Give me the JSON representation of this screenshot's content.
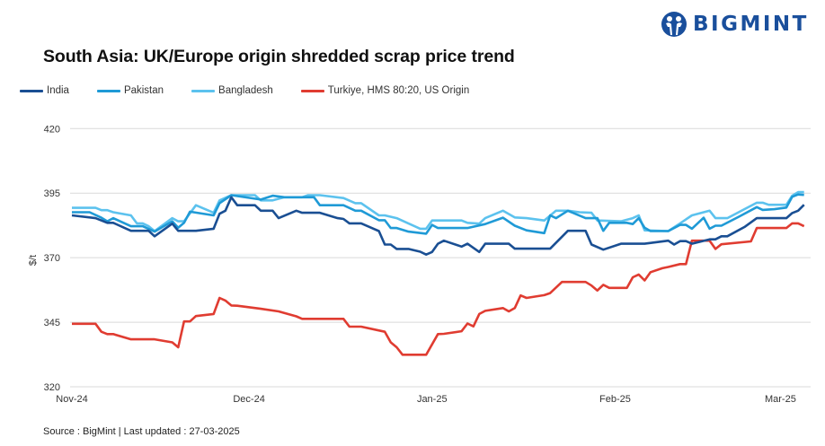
{
  "brand": {
    "name": "BIGMINT",
    "color": "#1a4f9c"
  },
  "source": "Source : BigMint | Last updated : 27-03-2025",
  "chart_data": {
    "type": "line",
    "title": "South Asia: UK/Europe origin shredded scrap price trend",
    "xlabel": "",
    "ylabel": "$/t",
    "ylim": [
      320,
      420
    ],
    "yticks": [
      "320",
      "345",
      "370",
      "395",
      "420"
    ],
    "xlim": [
      "2024-11-01",
      "2025-03-05"
    ],
    "xticks": [
      {
        "date": "2024-11-01",
        "label": "Nov-24"
      },
      {
        "date": "2024-12-01",
        "label": "Dec-24"
      },
      {
        "date": "2025-01-01",
        "label": "Jan-25"
      },
      {
        "date": "2025-02-01",
        "label": "Feb-25"
      },
      {
        "date": "2025-03-01",
        "label": "Mar-25"
      }
    ],
    "grid": "horizontal",
    "legend": "top",
    "series": [
      {
        "name": "India",
        "color": "#1a4f93",
        "points": [
          [
            "2024-11-01",
            386.4
          ],
          [
            "2024-11-05",
            385.3
          ],
          [
            "2024-11-07",
            383.5
          ],
          [
            "2024-11-08",
            383.5
          ],
          [
            "2024-11-11",
            380.4
          ],
          [
            "2024-11-14",
            380.4
          ],
          [
            "2024-11-15",
            378.3
          ],
          [
            "2024-11-18",
            383.2
          ],
          [
            "2024-11-19",
            380.4
          ],
          [
            "2024-11-22",
            380.4
          ],
          [
            "2024-11-25",
            381.2
          ],
          [
            "2024-11-26",
            387.0
          ],
          [
            "2024-11-27",
            388.2
          ],
          [
            "2024-11-28",
            393.4
          ],
          [
            "2024-11-29",
            390.3
          ],
          [
            "2024-12-02",
            390.3
          ],
          [
            "2024-12-03",
            388.2
          ],
          [
            "2024-12-05",
            388.2
          ],
          [
            "2024-12-06",
            385.3
          ],
          [
            "2024-12-09",
            388.2
          ],
          [
            "2024-12-10",
            387.4
          ],
          [
            "2024-12-13",
            387.4
          ],
          [
            "2024-12-16",
            385.3
          ],
          [
            "2024-12-17",
            385.0
          ],
          [
            "2024-12-18",
            383.3
          ],
          [
            "2024-12-20",
            383.3
          ],
          [
            "2024-12-23",
            380.3
          ],
          [
            "2024-12-24",
            375.1
          ],
          [
            "2024-12-25",
            375.1
          ],
          [
            "2024-12-26",
            373.4
          ],
          [
            "2024-12-28",
            373.4
          ],
          [
            "2024-12-30",
            372.3
          ],
          [
            "2024-12-31",
            371.2
          ],
          [
            "2025-01-01",
            372.2
          ],
          [
            "2025-01-02",
            375.4
          ],
          [
            "2025-01-03",
            376.6
          ],
          [
            "2025-01-06",
            374.3
          ],
          [
            "2025-01-07",
            375.4
          ],
          [
            "2025-01-09",
            372.2
          ],
          [
            "2025-01-10",
            375.4
          ],
          [
            "2025-01-14",
            375.4
          ],
          [
            "2025-01-15",
            373.5
          ],
          [
            "2025-01-21",
            373.5
          ],
          [
            "2025-01-24",
            380.4
          ],
          [
            "2025-01-27",
            380.4
          ],
          [
            "2025-01-28",
            375.1
          ],
          [
            "2025-01-30",
            373.1
          ],
          [
            "2025-02-02",
            375.4
          ],
          [
            "2025-02-06",
            375.4
          ],
          [
            "2025-02-10",
            376.6
          ],
          [
            "2025-02-11",
            375.1
          ],
          [
            "2025-02-12",
            376.4
          ],
          [
            "2025-02-13",
            376.4
          ],
          [
            "2025-02-14",
            375.4
          ],
          [
            "2025-02-17",
            377.1
          ],
          [
            "2025-02-18",
            377.1
          ],
          [
            "2025-02-19",
            378.3
          ],
          [
            "2025-02-20",
            378.3
          ],
          [
            "2025-02-23",
            382.0
          ],
          [
            "2025-02-25",
            385.3
          ],
          [
            "2025-03-02",
            385.3
          ],
          [
            "2025-03-03",
            387.3
          ],
          [
            "2025-03-04",
            388.2
          ],
          [
            "2025-03-05",
            390.5
          ]
        ]
      },
      {
        "name": "Pakistan",
        "color": "#1f9ad6",
        "points": [
          [
            "2024-11-01",
            387.6
          ],
          [
            "2024-11-04",
            387.6
          ],
          [
            "2024-11-06",
            385.5
          ],
          [
            "2024-11-07",
            384.1
          ],
          [
            "2024-11-08",
            385.3
          ],
          [
            "2024-11-11",
            382.2
          ],
          [
            "2024-11-13",
            382.2
          ],
          [
            "2024-11-15",
            380.1
          ],
          [
            "2024-11-18",
            384.1
          ],
          [
            "2024-11-19",
            381.6
          ],
          [
            "2024-11-20",
            383.5
          ],
          [
            "2024-11-21",
            387.8
          ],
          [
            "2024-11-25",
            386.4
          ],
          [
            "2024-11-26",
            391.1
          ],
          [
            "2024-11-28",
            394.2
          ],
          [
            "2024-12-03",
            392.5
          ],
          [
            "2024-12-05",
            394.0
          ],
          [
            "2024-12-07",
            393.4
          ],
          [
            "2024-12-12",
            393.4
          ],
          [
            "2024-12-13",
            390.3
          ],
          [
            "2024-12-17",
            390.3
          ],
          [
            "2024-12-19",
            388.2
          ],
          [
            "2024-12-20",
            388.2
          ],
          [
            "2024-12-23",
            384.5
          ],
          [
            "2024-12-24",
            384.5
          ],
          [
            "2024-12-25",
            381.5
          ],
          [
            "2024-12-26",
            381.5
          ],
          [
            "2024-12-28",
            380.1
          ],
          [
            "2024-12-31",
            379.3
          ],
          [
            "2025-01-01",
            382.7
          ],
          [
            "2025-01-02",
            381.5
          ],
          [
            "2025-01-07",
            381.5
          ],
          [
            "2025-01-10",
            383.0
          ],
          [
            "2025-01-13",
            385.5
          ],
          [
            "2025-01-15",
            382.4
          ],
          [
            "2025-01-17",
            380.6
          ],
          [
            "2025-01-20",
            379.5
          ],
          [
            "2025-01-21",
            386.4
          ],
          [
            "2025-01-22",
            385.3
          ],
          [
            "2025-01-24",
            388.2
          ],
          [
            "2025-01-27",
            385.3
          ],
          [
            "2025-01-29",
            385.3
          ],
          [
            "2025-01-30",
            380.4
          ],
          [
            "2025-01-31",
            383.5
          ],
          [
            "2025-02-03",
            383.5
          ],
          [
            "2025-02-04",
            383.0
          ],
          [
            "2025-02-05",
            385.3
          ],
          [
            "2025-02-06",
            381.6
          ],
          [
            "2025-02-07",
            380.3
          ],
          [
            "2025-02-10",
            380.3
          ],
          [
            "2025-02-12",
            382.7
          ],
          [
            "2025-02-13",
            382.7
          ],
          [
            "2025-02-14",
            381.2
          ],
          [
            "2025-02-16",
            385.5
          ],
          [
            "2025-02-17",
            381.2
          ],
          [
            "2025-02-18",
            382.4
          ],
          [
            "2025-02-19",
            382.4
          ],
          [
            "2025-02-22",
            385.9
          ],
          [
            "2025-02-25",
            389.6
          ],
          [
            "2025-02-26",
            388.5
          ],
          [
            "2025-02-28",
            388.8
          ],
          [
            "2025-03-02",
            389.4
          ],
          [
            "2025-03-03",
            393.6
          ],
          [
            "2025-03-04",
            394.5
          ],
          [
            "2025-03-05",
            394.3
          ]
        ]
      },
      {
        "name": "Bangladesh",
        "color": "#5cc2ee",
        "points": [
          [
            "2024-11-01",
            389.3
          ],
          [
            "2024-11-05",
            389.3
          ],
          [
            "2024-11-06",
            388.4
          ],
          [
            "2024-11-07",
            388.4
          ],
          [
            "2024-11-08",
            387.6
          ],
          [
            "2024-11-11",
            386.4
          ],
          [
            "2024-11-12",
            383.3
          ],
          [
            "2024-11-13",
            383.3
          ],
          [
            "2024-11-14",
            382.2
          ],
          [
            "2024-11-15",
            380.3
          ],
          [
            "2024-11-18",
            385.3
          ],
          [
            "2024-11-19",
            384.1
          ],
          [
            "2024-11-20",
            384.1
          ],
          [
            "2024-11-22",
            390.3
          ],
          [
            "2024-11-25",
            387.4
          ],
          [
            "2024-11-26",
            392.2
          ],
          [
            "2024-11-28",
            394.2
          ],
          [
            "2024-12-02",
            394.2
          ],
          [
            "2024-12-03",
            392.2
          ],
          [
            "2024-12-05",
            392.2
          ],
          [
            "2024-12-07",
            393.4
          ],
          [
            "2024-12-10",
            393.4
          ],
          [
            "2024-12-11",
            394.2
          ],
          [
            "2024-12-13",
            394.2
          ],
          [
            "2024-12-17",
            393.1
          ],
          [
            "2024-12-19",
            391.1
          ],
          [
            "2024-12-20",
            391.1
          ],
          [
            "2024-12-23",
            386.4
          ],
          [
            "2024-12-24",
            386.4
          ],
          [
            "2024-12-26",
            385.3
          ],
          [
            "2024-12-30",
            381.2
          ],
          [
            "2024-12-31",
            381.2
          ],
          [
            "2025-01-01",
            384.4
          ],
          [
            "2025-01-06",
            384.4
          ],
          [
            "2025-01-07",
            383.5
          ],
          [
            "2025-01-09",
            383.2
          ],
          [
            "2025-01-10",
            385.3
          ],
          [
            "2025-01-13",
            388.2
          ],
          [
            "2025-01-15",
            385.6
          ],
          [
            "2025-01-17",
            385.3
          ],
          [
            "2025-01-20",
            384.4
          ],
          [
            "2025-01-22",
            388.2
          ],
          [
            "2025-01-24",
            388.2
          ],
          [
            "2025-01-26",
            387.6
          ],
          [
            "2025-01-28",
            387.4
          ],
          [
            "2025-01-29",
            384.4
          ],
          [
            "2025-02-02",
            384.1
          ],
          [
            "2025-02-04",
            385.3
          ],
          [
            "2025-02-05",
            386.4
          ],
          [
            "2025-02-06",
            380.6
          ],
          [
            "2025-02-10",
            380.3
          ],
          [
            "2025-02-12",
            383.3
          ],
          [
            "2025-02-14",
            386.4
          ],
          [
            "2025-02-17",
            388.2
          ],
          [
            "2025-02-18",
            385.3
          ],
          [
            "2025-02-20",
            385.3
          ],
          [
            "2025-02-25",
            391.3
          ],
          [
            "2025-02-26",
            391.3
          ],
          [
            "2025-02-27",
            390.5
          ],
          [
            "2025-03-02",
            390.5
          ],
          [
            "2025-03-03",
            394.0
          ],
          [
            "2025-03-04",
            395.4
          ],
          [
            "2025-03-05",
            395.4
          ]
        ]
      },
      {
        "name": "Turkiye, HMS 80:20, US Origin",
        "color": "#e03c31",
        "points": [
          [
            "2024-11-01",
            344.4
          ],
          [
            "2024-11-05",
            344.4
          ],
          [
            "2024-11-06",
            341.3
          ],
          [
            "2024-11-07",
            340.4
          ],
          [
            "2024-11-08",
            340.4
          ],
          [
            "2024-11-11",
            338.4
          ],
          [
            "2024-11-15",
            338.4
          ],
          [
            "2024-11-18",
            337.2
          ],
          [
            "2024-11-19",
            335.3
          ],
          [
            "2024-11-20",
            345.3
          ],
          [
            "2024-11-21",
            345.3
          ],
          [
            "2024-11-22",
            347.4
          ],
          [
            "2024-11-25",
            348.2
          ],
          [
            "2024-11-26",
            354.4
          ],
          [
            "2024-11-27",
            353.4
          ],
          [
            "2024-11-28",
            351.5
          ],
          [
            "2024-11-29",
            351.4
          ],
          [
            "2024-12-03",
            350.2
          ],
          [
            "2024-12-06",
            349.2
          ],
          [
            "2024-12-09",
            347.3
          ],
          [
            "2024-12-10",
            346.3
          ],
          [
            "2024-12-17",
            346.3
          ],
          [
            "2024-12-18",
            343.3
          ],
          [
            "2024-12-20",
            343.3
          ],
          [
            "2024-12-24",
            341.3
          ],
          [
            "2024-12-25",
            337.2
          ],
          [
            "2024-12-26",
            335.3
          ],
          [
            "2024-12-27",
            332.4
          ],
          [
            "2024-12-31",
            332.4
          ],
          [
            "2025-01-02",
            340.4
          ],
          [
            "2025-01-03",
            340.5
          ],
          [
            "2025-01-06",
            341.5
          ],
          [
            "2025-01-07",
            344.5
          ],
          [
            "2025-01-08",
            343.4
          ],
          [
            "2025-01-09",
            348.2
          ],
          [
            "2025-01-10",
            349.4
          ],
          [
            "2025-01-13",
            350.5
          ],
          [
            "2025-01-14",
            349.2
          ],
          [
            "2025-01-15",
            350.5
          ],
          [
            "2025-01-16",
            355.4
          ],
          [
            "2025-01-17",
            354.4
          ],
          [
            "2025-01-20",
            355.5
          ],
          [
            "2025-01-21",
            356.3
          ],
          [
            "2025-01-23",
            360.6
          ],
          [
            "2025-01-27",
            360.6
          ],
          [
            "2025-01-28",
            359.2
          ],
          [
            "2025-01-29",
            357.3
          ],
          [
            "2025-01-30",
            359.5
          ],
          [
            "2025-01-31",
            358.3
          ],
          [
            "2025-02-03",
            358.3
          ],
          [
            "2025-02-04",
            362.4
          ],
          [
            "2025-02-05",
            363.5
          ],
          [
            "2025-02-06",
            361.2
          ],
          [
            "2025-02-07",
            364.4
          ],
          [
            "2025-02-09",
            365.9
          ],
          [
            "2025-02-10",
            366.4
          ],
          [
            "2025-02-12",
            367.5
          ],
          [
            "2025-02-13",
            367.5
          ],
          [
            "2025-02-14",
            376.6
          ],
          [
            "2025-02-17",
            376.6
          ],
          [
            "2025-02-18",
            373.4
          ],
          [
            "2025-02-19",
            375.2
          ],
          [
            "2025-02-24",
            376.3
          ],
          [
            "2025-02-25",
            381.5
          ],
          [
            "2025-03-02",
            381.5
          ],
          [
            "2025-03-03",
            383.3
          ],
          [
            "2025-03-04",
            383.3
          ],
          [
            "2025-03-05",
            382.2
          ]
        ]
      }
    ]
  }
}
